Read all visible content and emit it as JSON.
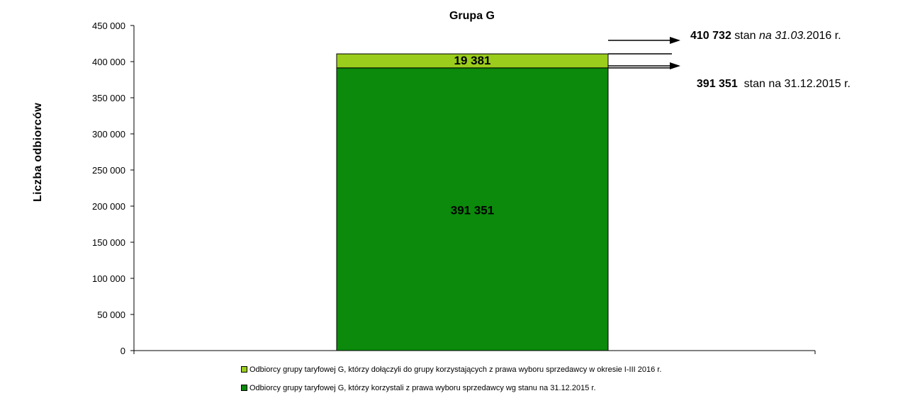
{
  "chart_data": {
    "type": "bar",
    "stacked": true,
    "title": "Grupa G",
    "ylabel": "Liczba odbiorców",
    "xlabel": "",
    "ylim": [
      0,
      450000
    ],
    "yticks": [
      0,
      50000,
      100000,
      150000,
      200000,
      250000,
      300000,
      350000,
      400000,
      450000
    ],
    "ytick_labels": [
      "0",
      "50 000",
      "100 000",
      "150 000",
      "200 000",
      "250 000",
      "300 000",
      "350 000",
      "400 000",
      "450 000"
    ],
    "grid": false,
    "legend_position": "bottom",
    "series": [
      {
        "name": "Odbiorcy grupy taryfowej G, którzy korzystali z prawa wyboru sprzedawcy wg stanu na 31.12.2015 r.",
        "values": [
          391351
        ],
        "value_label": "391 351",
        "color": "#0b8a0b"
      },
      {
        "name": "Odbiorcy grupy taryfowej G, którzy dołączyli do grupy korzystających z  prawa wyboru sprzedawcy w okresie I-III 2016 r.",
        "values": [
          19381
        ],
        "value_label": "19 381",
        "color": "#9acd1c"
      }
    ]
  },
  "annotations": {
    "total": {
      "value": "410 732",
      "text_a": " stan ",
      "text_italic": "na 31.03.",
      "text_b": "2016 r."
    },
    "base": {
      "value": "391 351",
      "text": "  stan na 31.12.2015 r."
    }
  },
  "legend": [
    {
      "label": "Odbiorcy grupy taryfowej G, którzy dołączyli do grupy korzystających z  prawa wyboru sprzedawcy w okresie I-III 2016 r.",
      "color": "#9acd1c"
    },
    {
      "label": "Odbiorcy grupy taryfowej G, którzy korzystali z prawa wyboru sprzedawcy wg stanu na 31.12.2015 r.",
      "color": "#0b8a0b"
    }
  ]
}
